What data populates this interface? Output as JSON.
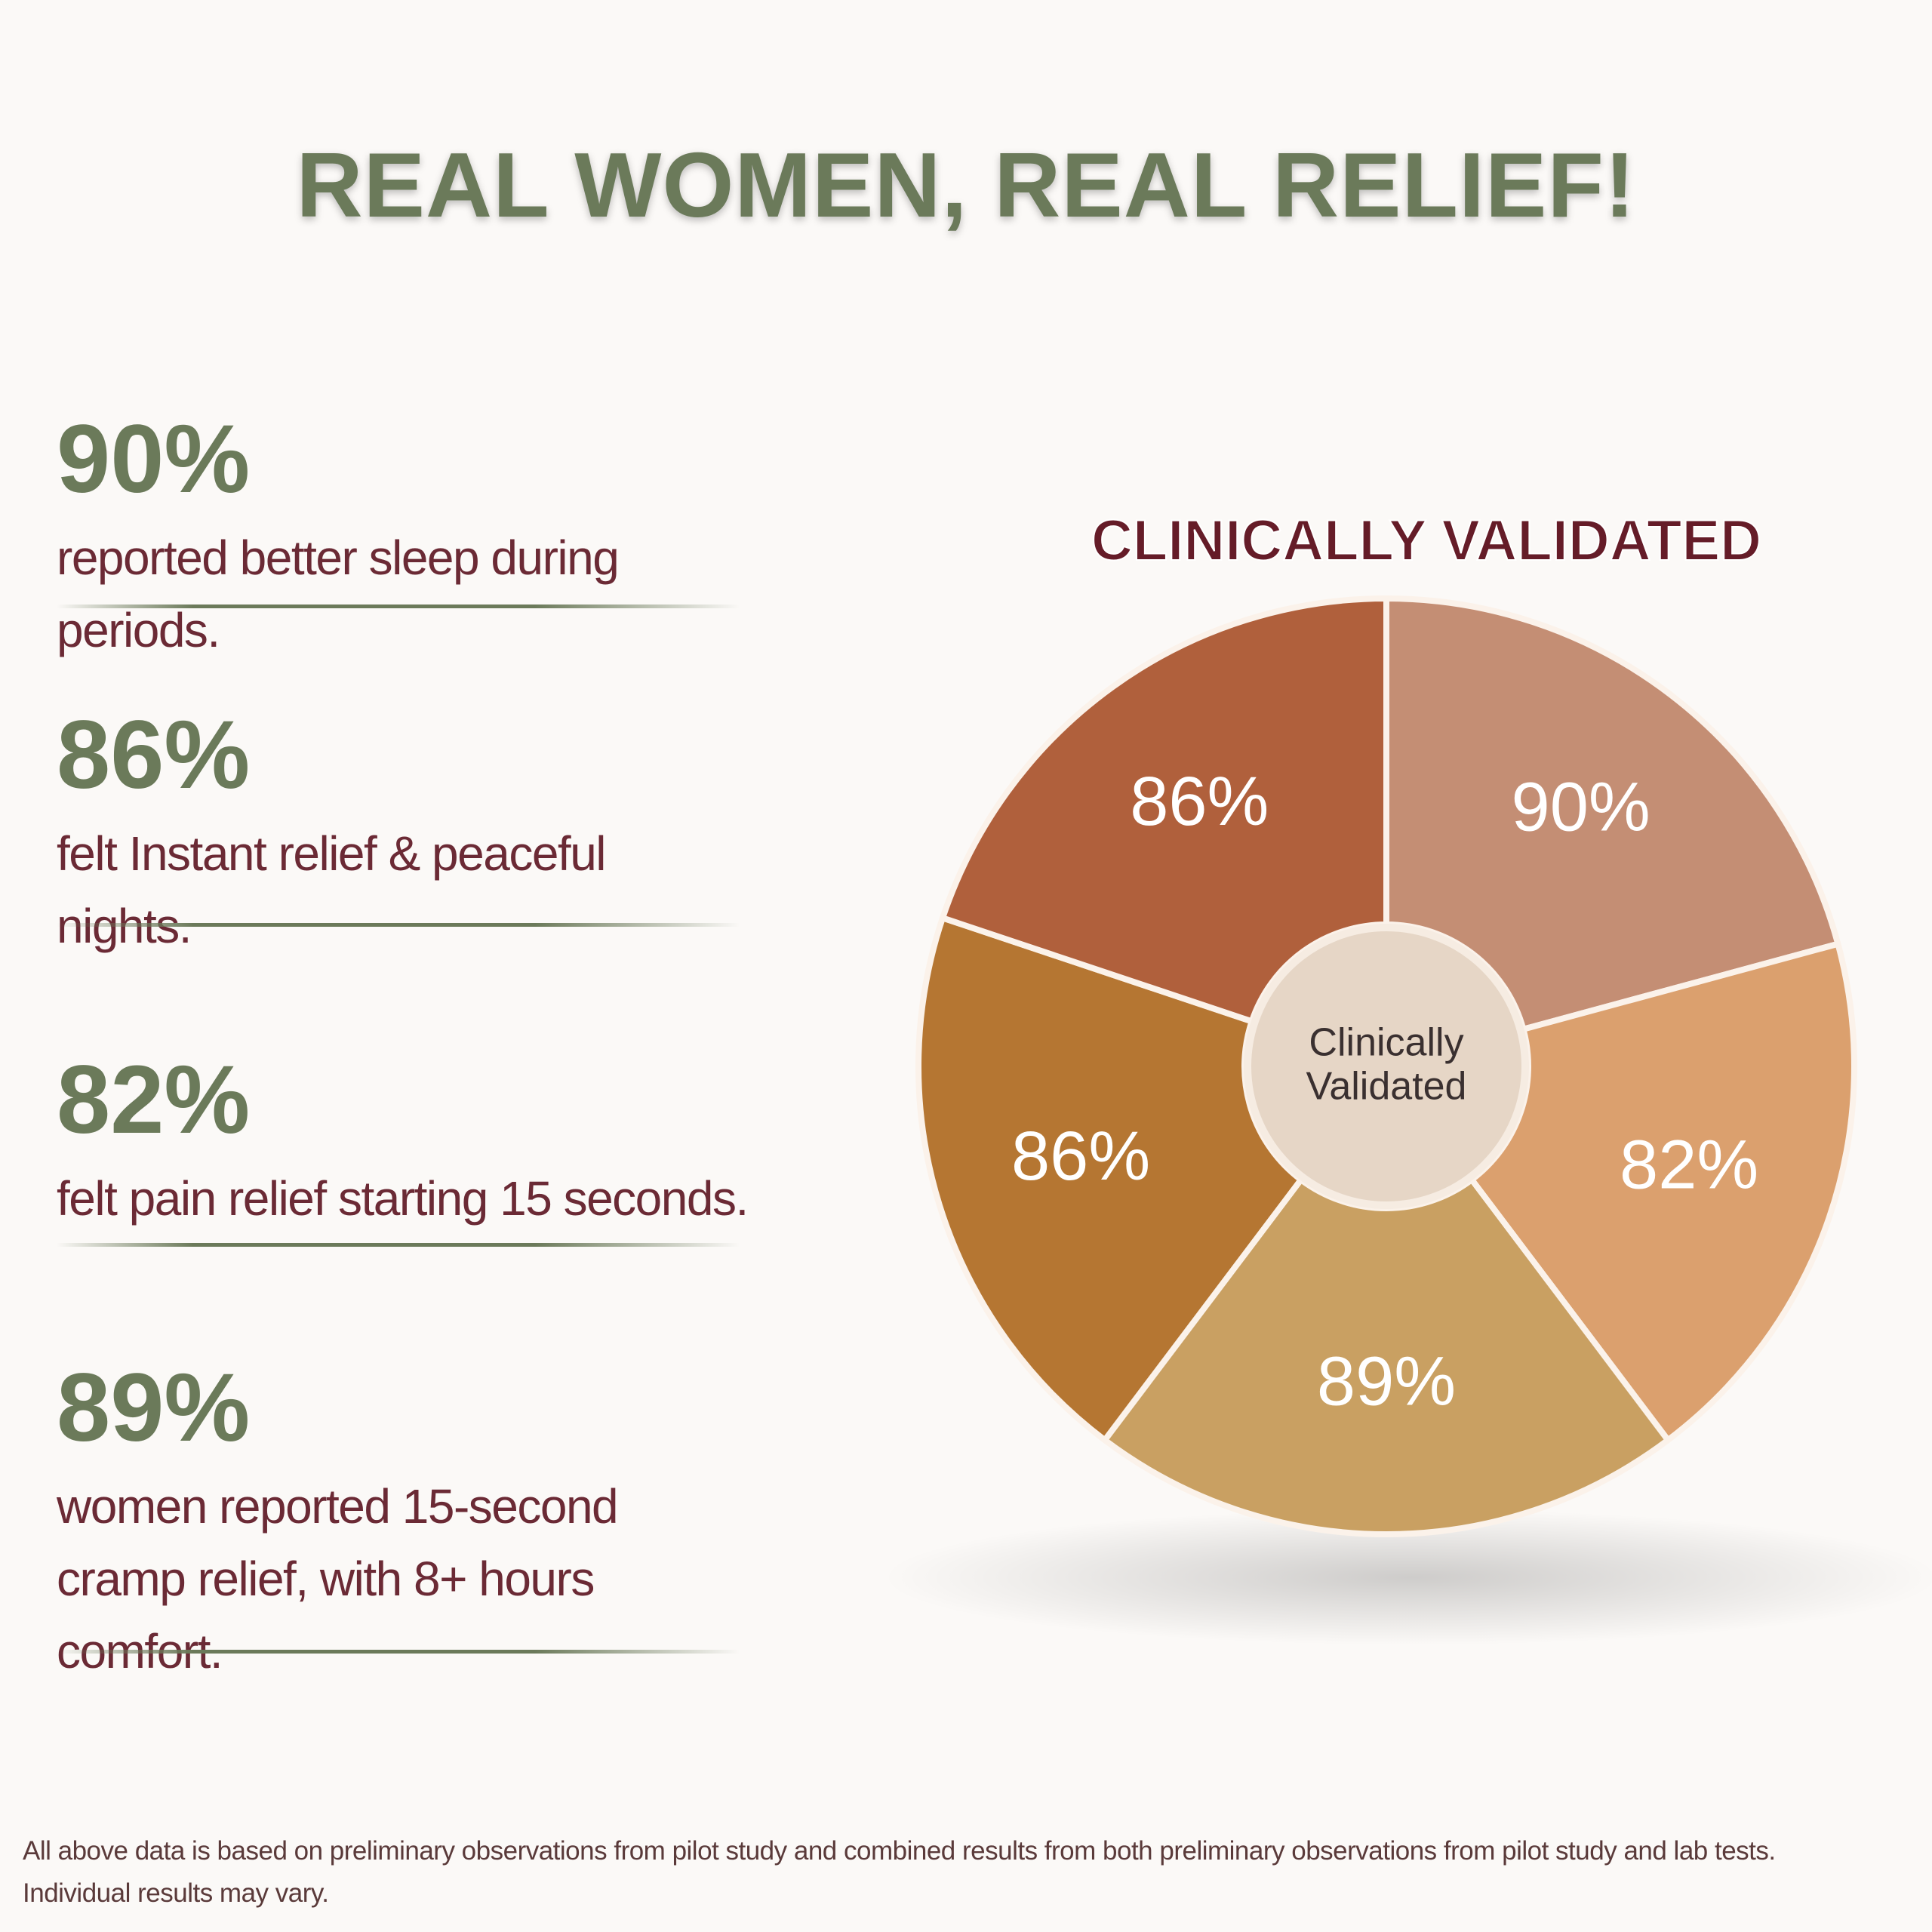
{
  "header": {
    "title": "REAL WOMEN, REAL RELIEF!"
  },
  "stats": [
    {
      "value": "90%",
      "text": "reported better sleep during periods."
    },
    {
      "value": "86%",
      "text": "felt Instant relief & peaceful nights."
    },
    {
      "value": "82%",
      "text": "felt pain relief starting 15 seconds."
    },
    {
      "value": "89%",
      "text": "women reported 15-second cramp relief, with 8+ hours comfort."
    }
  ],
  "chart_data": {
    "type": "pie",
    "title": "CLINICALLY VALIDATED",
    "center_label": [
      "Clinically",
      "Validated"
    ],
    "values": [
      90,
      82,
      89,
      86,
      86
    ],
    "value_labels": [
      "90%",
      "82%",
      "89%",
      "86%",
      "86%"
    ],
    "colors": [
      "#c48e74",
      "#dba06e",
      "#c9a062",
      "#b57632",
      "#b0603c"
    ]
  },
  "footnote": "All above data is based on preliminary observations from pilot study and combined results from both preliminary observations from pilot study and lab tests. Individual results may vary."
}
